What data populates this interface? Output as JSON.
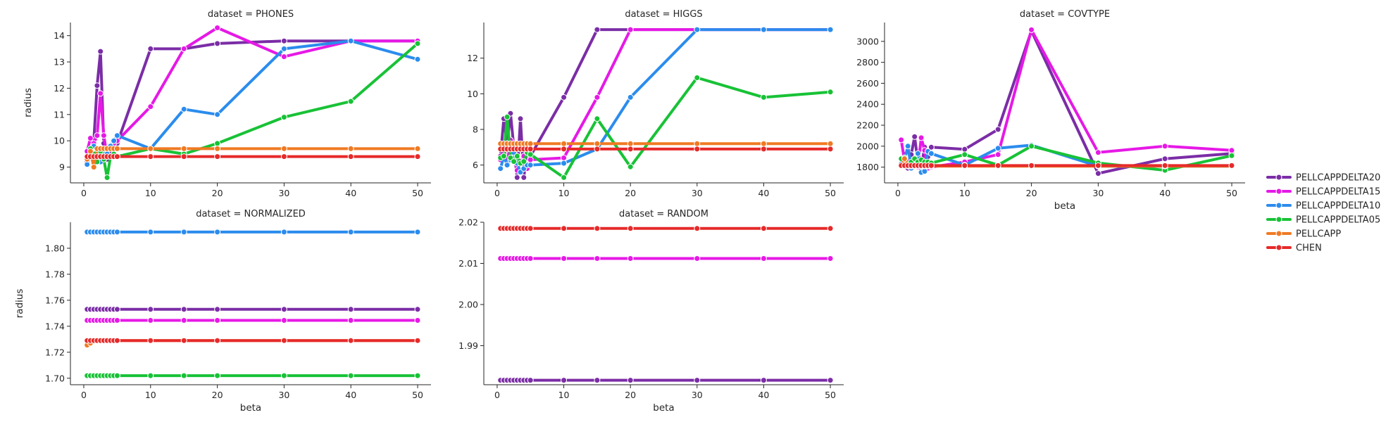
{
  "figure": {
    "legend": {
      "placement": "right",
      "entries": [
        "PELLCAPPDELTA20",
        "PELLCAPPDELTA15",
        "PELLCAPPDELTA10",
        "PELLCAPPDELTA05",
        "PELLCAPP",
        "CHEN"
      ]
    }
  },
  "chart_data": [
    {
      "type": "line",
      "title": "dataset = PHONES",
      "xlabel": "",
      "ylabel": "radius",
      "xlim": [
        -2,
        52
      ],
      "ylim": [
        8.4,
        14.5
      ],
      "xticks": [
        0,
        10,
        20,
        30,
        40,
        50
      ],
      "yticks": [
        9,
        10,
        11,
        12,
        13,
        14
      ],
      "x": [
        0.5,
        1,
        1.5,
        2,
        2.5,
        3,
        3.5,
        4,
        4.5,
        5,
        10,
        15,
        20,
        30,
        40,
        50
      ],
      "series": [
        {
          "name": "PELLCAPPDELTA20",
          "color": "#7b2da6",
          "values": [
            9.2,
            9.4,
            10.0,
            12.1,
            13.4,
            9.9,
            9.3,
            9.6,
            9.8,
            9.9,
            13.5,
            13.5,
            13.7,
            13.8,
            13.8,
            13.8
          ]
        },
        {
          "name": "PELLCAPPDELTA15",
          "color": "#e619e6",
          "values": [
            9.6,
            10.1,
            9.9,
            10.2,
            11.8,
            10.2,
            9.4,
            9.8,
            9.9,
            10.0,
            11.3,
            13.5,
            14.3,
            13.2,
            13.8,
            13.8
          ]
        },
        {
          "name": "PELLCAPPDELTA10",
          "color": "#2b8ced",
          "values": [
            9.1,
            9.6,
            9.8,
            9.6,
            9.2,
            9.7,
            9.5,
            9.8,
            10.0,
            10.2,
            9.7,
            11.2,
            11.0,
            13.5,
            13.8,
            13.1
          ]
        },
        {
          "name": "PELLCAPPDELTA05",
          "color": "#18c236",
          "values": [
            9.4,
            9.7,
            9.5,
            9.2,
            9.6,
            9.3,
            8.6,
            9.4,
            9.5,
            9.4,
            9.7,
            9.5,
            9.9,
            10.9,
            11.5,
            13.7
          ]
        },
        {
          "name": "PELLCAPP",
          "color": "#f07a23",
          "values": [
            9.3,
            9.6,
            9.0,
            9.7,
            9.7,
            9.7,
            9.7,
            9.7,
            9.7,
            9.7,
            9.7,
            9.7,
            9.7,
            9.7,
            9.7,
            9.7
          ]
        },
        {
          "name": "CHEN",
          "color": "#e62a2a",
          "values": [
            9.4,
            9.4,
            9.4,
            9.4,
            9.4,
            9.4,
            9.4,
            9.4,
            9.4,
            9.4,
            9.4,
            9.4,
            9.4,
            9.4,
            9.4,
            9.4
          ]
        }
      ]
    },
    {
      "type": "line",
      "title": "dataset = HIGGS",
      "xlabel": "",
      "ylabel": "",
      "xlim": [
        -2,
        52
      ],
      "ylim": [
        5.0,
        14.0
      ],
      "xticks": [
        0,
        10,
        20,
        30,
        40,
        50
      ],
      "yticks": [
        6,
        8,
        10,
        12
      ],
      "x": [
        0.5,
        1,
        1.5,
        2,
        2.5,
        3,
        3.5,
        4,
        4.5,
        5,
        10,
        15,
        20,
        30,
        40,
        50
      ],
      "series": [
        {
          "name": "PELLCAPPDELTA20",
          "color": "#7b2da6",
          "values": [
            6.5,
            8.6,
            7.2,
            8.9,
            7.0,
            5.3,
            8.6,
            5.3,
            7.0,
            6.5,
            9.8,
            13.6,
            13.6,
            13.6,
            13.6,
            13.6
          ]
        },
        {
          "name": "PELLCAPPDELTA15",
          "color": "#e619e6",
          "values": [
            6.3,
            7.0,
            6.0,
            7.4,
            6.5,
            5.7,
            6.2,
            6.5,
            5.8,
            6.3,
            6.4,
            9.8,
            13.6,
            13.6,
            13.6,
            13.6
          ]
        },
        {
          "name": "PELLCAPPDELTA10",
          "color": "#2b8ced",
          "values": [
            5.8,
            6.5,
            6.0,
            6.3,
            6.7,
            6.1,
            5.6,
            5.8,
            6.0,
            6.0,
            6.1,
            6.9,
            9.8,
            13.6,
            13.6,
            13.6
          ]
        },
        {
          "name": "PELLCAPPDELTA05",
          "color": "#18c236",
          "values": [
            6.4,
            6.5,
            8.7,
            6.4,
            6.2,
            6.5,
            6.1,
            6.2,
            6.7,
            6.6,
            5.3,
            8.6,
            5.9,
            10.9,
            9.8,
            10.1
          ]
        },
        {
          "name": "PELLCAPP",
          "color": "#f07a23",
          "values": [
            7.2,
            7.2,
            7.2,
            7.2,
            7.2,
            7.2,
            7.2,
            7.2,
            7.2,
            7.2,
            7.2,
            7.2,
            7.2,
            7.2,
            7.2,
            7.2
          ]
        },
        {
          "name": "CHEN",
          "color": "#e62a2a",
          "values": [
            6.9,
            6.9,
            6.9,
            6.9,
            6.9,
            6.9,
            6.9,
            6.9,
            6.9,
            6.9,
            6.9,
            6.9,
            6.9,
            6.9,
            6.9,
            6.9
          ]
        }
      ]
    },
    {
      "type": "line",
      "title": "dataset = COVTYPE",
      "xlabel": "beta",
      "ylabel": "",
      "xlim": [
        -2,
        52
      ],
      "ylim": [
        1650,
        3180
      ],
      "xticks": [
        0,
        10,
        20,
        30,
        40,
        50
      ],
      "yticks": [
        1800,
        2000,
        2200,
        2400,
        2600,
        2800,
        3000
      ],
      "x": [
        0.5,
        1,
        1.5,
        2,
        2.5,
        3,
        3.5,
        4,
        4.5,
        5,
        10,
        15,
        20,
        30,
        40,
        50
      ],
      "series": [
        {
          "name": "PELLCAPPDELTA20",
          "color": "#7b2da6",
          "values": [
            1870,
            1920,
            1790,
            1920,
            2090,
            1850,
            1790,
            1990,
            1900,
            1990,
            1970,
            2160,
            3100,
            1740,
            1880,
            1930
          ]
        },
        {
          "name": "PELLCAPPDELTA15",
          "color": "#e619e6",
          "values": [
            2060,
            1860,
            1850,
            1830,
            1880,
            1800,
            2080,
            1960,
            1790,
            1800,
            1850,
            1920,
            3110,
            1940,
            2000,
            1960
          ]
        },
        {
          "name": "PELLCAPPDELTA10",
          "color": "#2b8ced",
          "values": [
            1830,
            1870,
            2000,
            1790,
            1870,
            1930,
            1750,
            1760,
            1950,
            1930,
            1820,
            1980,
            2010,
            1810,
            1810,
            1810
          ]
        },
        {
          "name": "PELLCAPPDELTA05",
          "color": "#18c236",
          "values": [
            1880,
            1890,
            1830,
            1850,
            1880,
            1850,
            1870,
            1850,
            1850,
            1840,
            1920,
            1820,
            2000,
            1840,
            1770,
            1910
          ]
        },
        {
          "name": "PELLCAPP",
          "color": "#f07a23",
          "values": [
            1810,
            1880,
            1810,
            1810,
            1810,
            1810,
            1810,
            1810,
            1810,
            1810,
            1810,
            1810,
            1810,
            1810,
            1810,
            1810
          ]
        },
        {
          "name": "CHEN",
          "color": "#e62a2a",
          "values": [
            1815,
            1815,
            1815,
            1815,
            1815,
            1815,
            1815,
            1815,
            1815,
            1815,
            1815,
            1815,
            1815,
            1815,
            1815,
            1815
          ]
        }
      ]
    },
    {
      "type": "line",
      "title": "dataset = NORMALIZED",
      "xlabel": "beta",
      "ylabel": "radius",
      "xlim": [
        -2,
        52
      ],
      "ylim": [
        1.695,
        1.82
      ],
      "xticks": [
        0,
        10,
        20,
        30,
        40,
        50
      ],
      "yticks": [
        1.7,
        1.72,
        1.74,
        1.76,
        1.78,
        1.8
      ],
      "ytick_labels": [
        "1.70",
        "1.72",
        "1.74",
        "1.76",
        "1.78",
        "1.80"
      ],
      "x": [
        0.5,
        1,
        1.5,
        2,
        2.5,
        3,
        3.5,
        4,
        4.5,
        5,
        10,
        15,
        20,
        30,
        40,
        50
      ],
      "series": [
        {
          "name": "PELLCAPPDELTA20",
          "color": "#7b2da6",
          "values": [
            1.753,
            1.753,
            1.753,
            1.753,
            1.753,
            1.753,
            1.753,
            1.753,
            1.753,
            1.753,
            1.753,
            1.753,
            1.753,
            1.753,
            1.753,
            1.753
          ]
        },
        {
          "name": "PELLCAPPDELTA15",
          "color": "#e619e6",
          "values": [
            1.7445,
            1.7445,
            1.7445,
            1.7445,
            1.7445,
            1.7445,
            1.7445,
            1.7445,
            1.7445,
            1.7445,
            1.7445,
            1.7445,
            1.7445,
            1.7445,
            1.7445,
            1.7445
          ]
        },
        {
          "name": "PELLCAPPDELTA10",
          "color": "#2b8ced",
          "values": [
            1.8125,
            1.8125,
            1.8125,
            1.8125,
            1.8125,
            1.8125,
            1.8125,
            1.8125,
            1.8125,
            1.8125,
            1.8125,
            1.8125,
            1.8125,
            1.8125,
            1.8125,
            1.8125
          ]
        },
        {
          "name": "PELLCAPPDELTA05",
          "color": "#18c236",
          "values": [
            1.702,
            1.702,
            1.702,
            1.702,
            1.702,
            1.702,
            1.702,
            1.702,
            1.702,
            1.702,
            1.702,
            1.702,
            1.702,
            1.702,
            1.702,
            1.702
          ]
        },
        {
          "name": "PELLCAPP",
          "color": "#f07a23",
          "values": [
            1.7255,
            1.727,
            1.729,
            1.729,
            1.729,
            1.729,
            1.729,
            1.729,
            1.729,
            1.729,
            1.729,
            1.729,
            1.729,
            1.729,
            1.729,
            1.729
          ]
        },
        {
          "name": "CHEN",
          "color": "#e62a2a",
          "values": [
            1.729,
            1.729,
            1.729,
            1.729,
            1.729,
            1.729,
            1.729,
            1.729,
            1.729,
            1.729,
            1.729,
            1.729,
            1.729,
            1.729,
            1.729,
            1.729
          ]
        }
      ]
    },
    {
      "type": "line",
      "title": "dataset = RANDOM",
      "xlabel": "beta",
      "ylabel": "",
      "xlim": [
        -2,
        52
      ],
      "ylim": [
        1.9805,
        2.02
      ],
      "xticks": [
        0,
        10,
        20,
        30,
        40,
        50
      ],
      "yticks": [
        1.99,
        2.0,
        2.01,
        2.02
      ],
      "ytick_labels": [
        "1.99",
        "2.00",
        "2.01",
        "2.02"
      ],
      "x": [
        0.5,
        1,
        1.5,
        2,
        2.5,
        3,
        3.5,
        4,
        4.5,
        5,
        10,
        15,
        20,
        30,
        40,
        50
      ],
      "series": [
        {
          "name": "PELLCAPPDELTA20",
          "color": "#7b2da6",
          "values": [
            1.9816,
            1.9816,
            1.9816,
            1.9816,
            1.9816,
            1.9816,
            1.9816,
            1.9816,
            1.9816,
            1.9816,
            1.9816,
            1.9816,
            1.9816,
            1.9816,
            1.9816,
            1.9816
          ]
        },
        {
          "name": "PELLCAPPDELTA15",
          "color": "#e619e6",
          "values": [
            2.0112,
            2.0112,
            2.0112,
            2.0112,
            2.0112,
            2.0112,
            2.0112,
            2.0112,
            2.0112,
            2.0112,
            2.0112,
            2.0112,
            2.0112,
            2.0112,
            2.0112,
            2.0112
          ]
        },
        {
          "name": "CHEN",
          "color": "#e62a2a",
          "values": [
            2.0185,
            2.0185,
            2.0185,
            2.0185,
            2.0185,
            2.0185,
            2.0185,
            2.0185,
            2.0185,
            2.0185,
            2.0185,
            2.0185,
            2.0185,
            2.0185,
            2.0185,
            2.0185
          ]
        }
      ]
    }
  ]
}
